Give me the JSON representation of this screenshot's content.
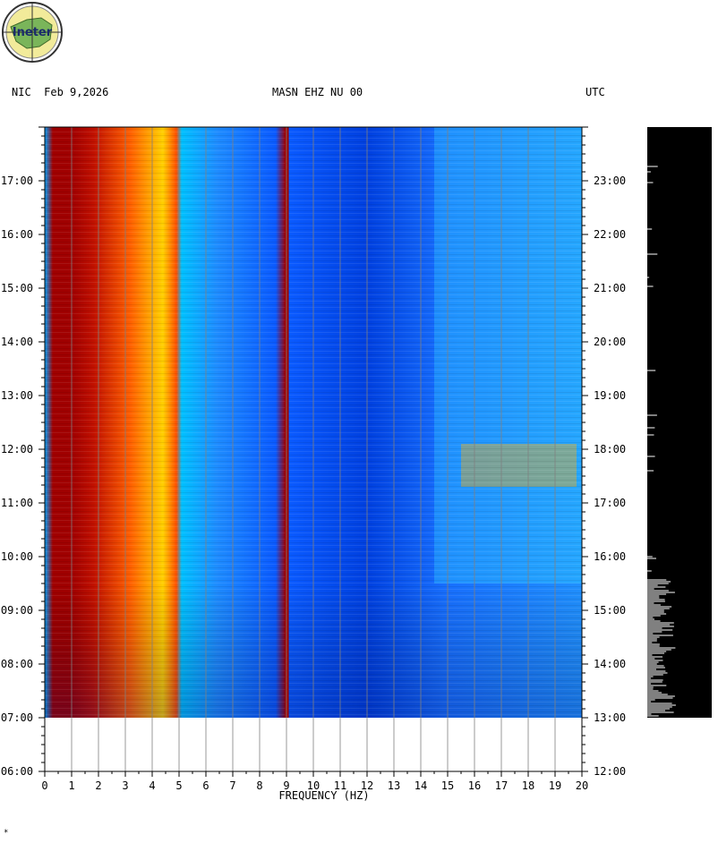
{
  "logo": {
    "text": "Ineter"
  },
  "header": {
    "left": "NIC  Feb 9,2026",
    "center": "MASN EHZ NU 00",
    "right": "UTC"
  },
  "chart_data": {
    "type": "heatmap",
    "title": "MASN EHZ NU 00",
    "xlabel": "FREQUENCY (HZ)",
    "x_ticks": [
      "0",
      "1",
      "2",
      "3",
      "4",
      "5",
      "6",
      "7",
      "8",
      "9",
      "10",
      "11",
      "12",
      "13",
      "14",
      "15",
      "16",
      "17",
      "18",
      "19",
      "20"
    ],
    "xlim": [
      0,
      20
    ],
    "left_time_ticks": [
      "06:00",
      "07:00",
      "08:00",
      "09:00",
      "10:00",
      "11:00",
      "12:00",
      "13:00",
      "14:00",
      "15:00",
      "16:00",
      "17:00"
    ],
    "right_time_ticks": [
      "12:00",
      "13:00",
      "14:00",
      "15:00",
      "16:00",
      "17:00",
      "18:00",
      "19:00",
      "20:00",
      "21:00",
      "22:00",
      "23:00"
    ],
    "time_range_local": [
      "06:00",
      "18:00"
    ],
    "data_range_local": [
      "07:00",
      "18:00"
    ],
    "dominant_bands_hz": [
      [
        0.3,
        1.0
      ],
      [
        1.0,
        4.9
      ],
      [
        8.9,
        9.1
      ]
    ],
    "noise_increase_local_start": "09:30",
    "colormap": [
      "#0018c8",
      "#0060ff",
      "#00c8ff",
      "#a0ff60",
      "#ffe000",
      "#ff6000",
      "#a00000"
    ]
  },
  "side_trace": {
    "background": "#000000",
    "trace_color": "#ffffff"
  },
  "footer": {
    "mark": "*"
  }
}
